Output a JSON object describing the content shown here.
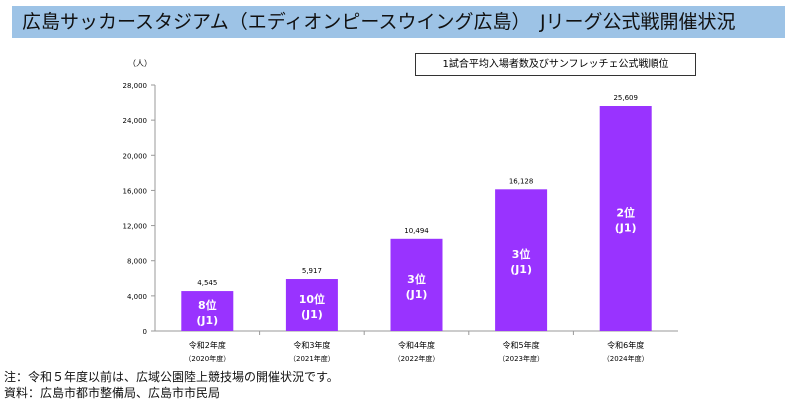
{
  "title": "広島サッカースタジアム（エディオンピースウイング広島）　Jリーグ公式戦開催状況",
  "notes": [
    "注：令和５年度以前は、広域公園陸上競技場の開催状況です。",
    "資料：広島市都市整備局、広島市市民局"
  ],
  "chart_data": {
    "type": "bar",
    "legend": "1試合平均入場者数及びサンフレッチェ公式戦順位",
    "ylabel": "（人）",
    "ylim": [
      0,
      28000
    ],
    "yticks": [
      "0",
      "4,000",
      "8,000",
      "12,000",
      "16,000",
      "20,000",
      "24,000",
      "28,000"
    ],
    "categories": [
      [
        "令和2年度",
        "（2020年度）"
      ],
      [
        "令和3年度",
        "（2021年度）"
      ],
      [
        "令和4年度",
        "（2022年度）"
      ],
      [
        "令和5年度",
        "（2023年度）"
      ],
      [
        "令和6年度",
        "（2024年度）"
      ]
    ],
    "values": [
      4545,
      5917,
      10494,
      16128,
      25609
    ],
    "value_labels": [
      "4,545",
      "5,917",
      "10,494",
      "16,128",
      "25,609"
    ],
    "bar_labels": [
      [
        "8位",
        "(J1)"
      ],
      [
        "10位",
        "(J1)"
      ],
      [
        "3位",
        "(J1)"
      ],
      [
        "3位",
        "(J1)"
      ],
      [
        "2位",
        "(J1)"
      ]
    ],
    "bar_color": "#9933ff",
    "grid": false
  }
}
